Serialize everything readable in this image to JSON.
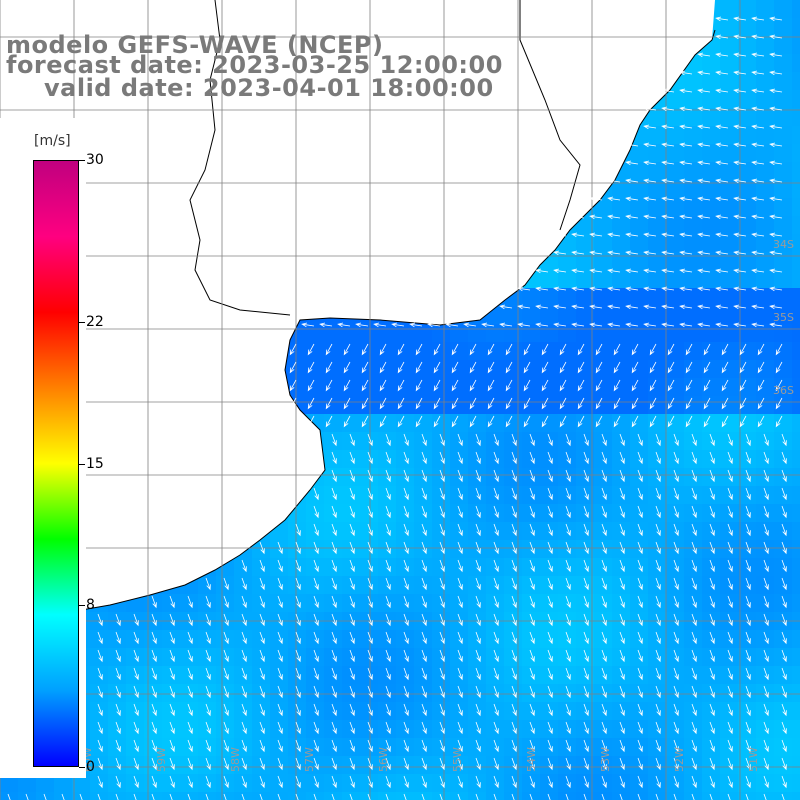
{
  "title": {
    "line1": "modelo GEFS-WAVE (NCEP)",
    "line2": "forecast date: 2023-03-25 12:00:00",
    "line3": "valid date: 2023-04-01 18:00:00"
  },
  "colorbar": {
    "unit": "[m/s]",
    "ticks": [
      {
        "label": "30",
        "value": 30
      },
      {
        "label": "22",
        "value": 22
      },
      {
        "label": "15",
        "value": 15
      },
      {
        "label": "8",
        "value": 8
      },
      {
        "label": "0",
        "value": 0
      }
    ],
    "colors": [
      "#0000ff",
      "#00a0ff",
      "#00ffff",
      "#00ff00",
      "#ffff00",
      "#ff8000",
      "#ff0000",
      "#ff0080",
      "#c0007f"
    ]
  },
  "map": {
    "ocean_color": "#00a8ff",
    "land_color": "#ffffff",
    "grid_color": "#808080",
    "arrow_color": "#ffffff",
    "lat_labels": [
      "34S",
      "35S",
      "36S"
    ],
    "lon_labels": [
      "61W",
      "60W",
      "59W",
      "58W",
      "57W",
      "56W",
      "55W",
      "54W",
      "53W",
      "52W",
      "51W"
    ]
  }
}
